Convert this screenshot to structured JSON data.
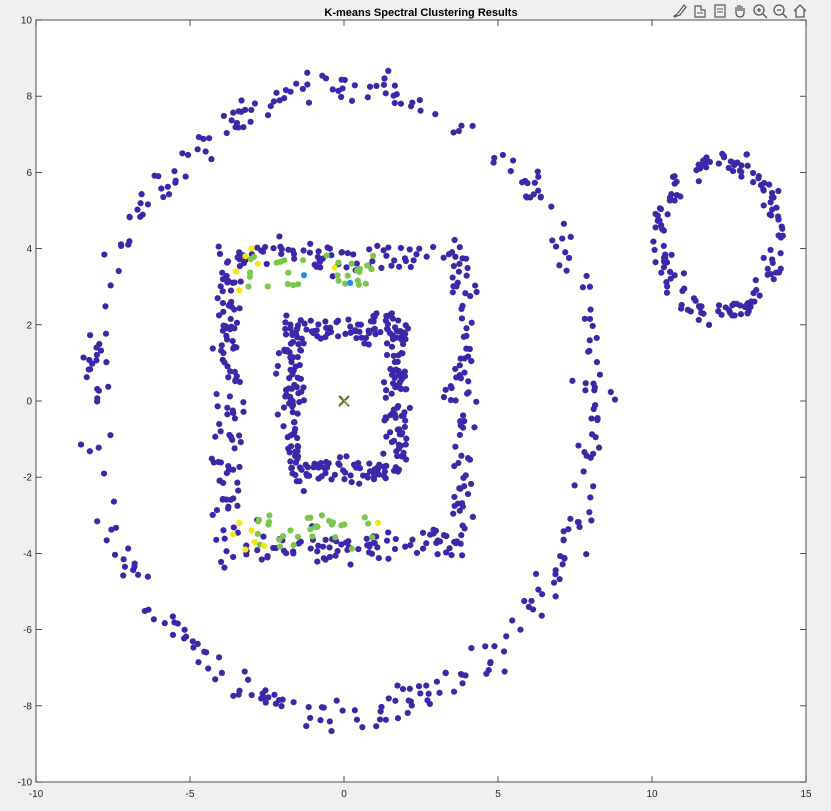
{
  "toolbar": {
    "items": [
      {
        "icon": "brush-icon",
        "label": "Brush"
      },
      {
        "icon": "pan-data-icon",
        "label": "Data tips"
      },
      {
        "icon": "rotate-icon",
        "label": "Rotate"
      },
      {
        "icon": "hand-icon",
        "label": "Pan"
      },
      {
        "icon": "zoom-in-icon",
        "label": "Zoom in"
      },
      {
        "icon": "zoom-out-icon",
        "label": "Zoom out"
      },
      {
        "icon": "home-icon",
        "label": "Restore view"
      }
    ]
  },
  "chart_data": {
    "type": "scatter",
    "title": "K-means Spectral Clustering Results",
    "xlabel": "",
    "ylabel": "",
    "xlim": [
      -10,
      15
    ],
    "ylim": [
      -10,
      10
    ],
    "xticks": [
      "-10",
      "-5",
      "0",
      "5",
      "10",
      "15"
    ],
    "yticks": [
      "-10",
      "-8",
      "-6",
      "-4",
      "-2",
      "0",
      "2",
      "4",
      "6",
      "8",
      "10"
    ],
    "colors": {
      "cluster_main": "#3e26a8",
      "cluster_green": "#7ac74e",
      "cluster_yellow": "#f5e60f",
      "cluster_blue": "#1c8fe0",
      "centroid": "#7d5a2a"
    },
    "series": [
      {
        "name": "outer ellipse",
        "shape": "ellipse",
        "cx": 0,
        "cy": 0,
        "rx": 8.2,
        "ry": 8.2,
        "count": 320,
        "noise": 0.22,
        "color": "cluster_main"
      },
      {
        "name": "right ring",
        "shape": "ellipse",
        "cx": 12.2,
        "cy": 4.3,
        "rx": 1.9,
        "ry": 2.0,
        "count": 150,
        "noise": 0.15,
        "color": "cluster_main"
      },
      {
        "name": "outer rectangle",
        "shape": "rect",
        "x0": -3.8,
        "x1": 3.8,
        "y0": -3.8,
        "y1": 3.8,
        "count": 340,
        "noise": 0.22,
        "color": "cluster_main"
      },
      {
        "name": "inner rectangle",
        "shape": "rect",
        "x0": -1.7,
        "x1": 1.7,
        "y0": -1.8,
        "y1": 1.9,
        "count": 300,
        "noise": 0.2,
        "color": "cluster_main"
      },
      {
        "name": "top band green",
        "shape": "band",
        "x0": -3.2,
        "x1": 1.1,
        "y0": 3.0,
        "y1": 3.9,
        "count": 30,
        "color": "cluster_green"
      },
      {
        "name": "bottom band green",
        "shape": "band",
        "x0": -3.0,
        "x1": 1.2,
        "y0": -3.9,
        "y1": -3.0,
        "count": 32,
        "color": "cluster_green"
      },
      {
        "name": "yellow points",
        "shape": "points",
        "points": [
          [
            -3.5,
            3.4
          ],
          [
            -3.0,
            4.0
          ],
          [
            -3.2,
            3.8
          ],
          [
            -2.8,
            3.6
          ],
          [
            -3.4,
            2.9
          ],
          [
            -0.3,
            3.5
          ],
          [
            -3.6,
            -3.5
          ],
          [
            -3.2,
            -3.9
          ],
          [
            -2.9,
            -3.7
          ],
          [
            -3.4,
            -3.2
          ],
          [
            -3.0,
            -3.4
          ],
          [
            1.1,
            -3.2
          ],
          [
            -2.6,
            -3.8
          ]
        ],
        "color": "cluster_yellow"
      },
      {
        "name": "blue points",
        "shape": "points",
        "points": [
          [
            -1.3,
            3.3
          ],
          [
            0.2,
            3.1
          ]
        ],
        "color": "cluster_blue"
      }
    ],
    "centroid": [
      0,
      0
    ]
  }
}
